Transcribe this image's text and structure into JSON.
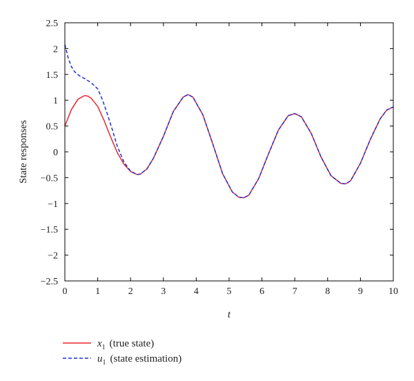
{
  "chart_data": {
    "type": "line",
    "title": "",
    "xlabel": "t",
    "ylabel": "State responses",
    "xlim": [
      0,
      10
    ],
    "ylim": [
      -2.5,
      2.5
    ],
    "x_ticks": [
      "0",
      "1",
      "2",
      "3",
      "4",
      "5",
      "6",
      "7",
      "8",
      "9",
      "10"
    ],
    "y_ticks": [
      "2.5",
      "2",
      "1.5",
      "1",
      "0.5",
      "0",
      "−0.5",
      "−1",
      "−1.5",
      "−2",
      "−2.5"
    ],
    "grid": false,
    "legend_position": "bottom-left, below plot",
    "series": [
      {
        "name_symbol": "x",
        "name_subscript": "1",
        "name_text": "(true state)",
        "color": "#e8262b",
        "style": "solid",
        "x": [
          0,
          0.2,
          0.4,
          0.6,
          0.7,
          0.8,
          1.0,
          1.2,
          1.4,
          1.6,
          1.8,
          2.0,
          2.2,
          2.3,
          2.5,
          2.7,
          3.0,
          3.3,
          3.6,
          3.75,
          3.9,
          4.2,
          4.5,
          4.8,
          5.1,
          5.3,
          5.45,
          5.6,
          5.9,
          6.2,
          6.5,
          6.8,
          7.0,
          7.2,
          7.5,
          7.8,
          8.1,
          8.4,
          8.55,
          8.7,
          9.0,
          9.3,
          9.6,
          9.8,
          10.0
        ],
        "y": [
          0.5,
          0.82,
          1.02,
          1.09,
          1.08,
          1.04,
          0.88,
          0.6,
          0.28,
          -0.02,
          -0.24,
          -0.38,
          -0.44,
          -0.43,
          -0.33,
          -0.12,
          0.3,
          0.78,
          1.06,
          1.11,
          1.06,
          0.72,
          0.16,
          -0.42,
          -0.78,
          -0.88,
          -0.89,
          -0.84,
          -0.52,
          -0.04,
          0.42,
          0.7,
          0.74,
          0.68,
          0.36,
          -0.1,
          -0.46,
          -0.61,
          -0.62,
          -0.56,
          -0.22,
          0.24,
          0.64,
          0.81,
          0.87
        ]
      },
      {
        "name_symbol": "u",
        "name_subscript": "1",
        "name_text": "(state estimation)",
        "color": "#1f2fd4",
        "style": "dashed",
        "x": [
          0,
          0.05,
          0.1,
          0.2,
          0.3,
          0.45,
          0.6,
          0.8,
          1.0,
          1.15,
          1.3,
          1.45,
          1.6,
          1.8,
          2.0,
          2.2,
          2.3,
          2.5,
          2.7,
          3.0,
          3.3,
          3.6,
          3.75,
          3.9,
          4.2,
          4.5,
          4.8,
          5.1,
          5.3,
          5.45,
          5.6,
          5.9,
          6.2,
          6.5,
          6.8,
          7.0,
          7.2,
          7.5,
          7.8,
          8.1,
          8.4,
          8.55,
          8.7,
          9.0,
          9.3,
          9.6,
          9.8,
          10.0
        ],
        "y": [
          2.08,
          1.95,
          1.82,
          1.65,
          1.55,
          1.47,
          1.42,
          1.34,
          1.22,
          1.0,
          0.72,
          0.42,
          0.1,
          -0.2,
          -0.37,
          -0.44,
          -0.43,
          -0.33,
          -0.12,
          0.3,
          0.78,
          1.06,
          1.11,
          1.06,
          0.72,
          0.16,
          -0.42,
          -0.78,
          -0.88,
          -0.89,
          -0.84,
          -0.52,
          -0.04,
          0.42,
          0.7,
          0.74,
          0.68,
          0.36,
          -0.1,
          -0.46,
          -0.61,
          -0.62,
          -0.56,
          -0.22,
          0.24,
          0.64,
          0.81,
          0.87
        ]
      }
    ]
  }
}
